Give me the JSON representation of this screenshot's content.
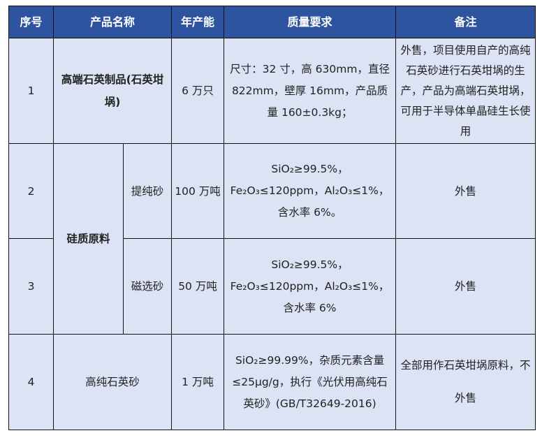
{
  "header": [
    "序号",
    "产品名称",
    "年产能",
    "质量要求",
    "备注"
  ],
  "rows": [
    {
      "no": "1",
      "name": "高端石英制品(石英坩埚)",
      "capacity": "6 万只",
      "quality": "尺寸：32 寸，高 630mm，直径 822mm，壁厚 16mm，产品质量 160±0.3kg；",
      "note": "外售，项目使用自产的高纯石英砂进行石英坩埚的生产，产品为高端石英坩埚，可用于半导体单晶硅生长使用"
    },
    {
      "no": "2",
      "group": "硅质原料",
      "name": "提纯砂",
      "capacity": "100 万吨",
      "quality": "SiO₂≥99.5%，Fe₂O₃≤120ppm，Al₂O₃≤1%，含水率 6%。",
      "note": "外售"
    },
    {
      "no": "3",
      "name": "磁选砂",
      "capacity": "50 万吨",
      "quality": "SiO₂≥99.5%，Fe₂O₃≤120ppm，Al₂O₃≤1%，含水率 6%",
      "note": "外售"
    },
    {
      "no": "4",
      "name": "高纯石英砂",
      "capacity": "1 万吨",
      "quality": "SiO₂≥99.99%，杂质元素含量≤25μg/g，执行《光伏用高纯石英砂》(GB/T32649-2016)",
      "note": "全部用作石英坩埚原料，不外售"
    }
  ],
  "colors": {
    "header_bg": "#2E54A0",
    "cell_bg": "#DCE3F5"
  }
}
